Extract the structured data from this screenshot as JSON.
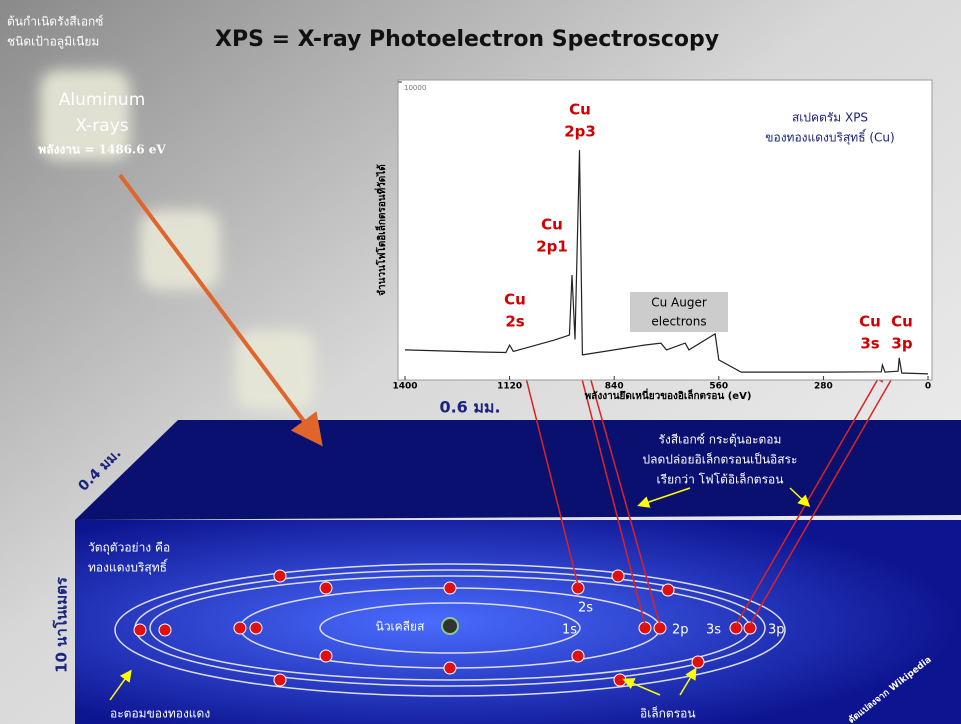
{
  "header": {
    "source_label": [
      "ต้นกำเนิดรังสีเอกซ์",
      "ชนิดเป้าอลูมิเนียม"
    ],
    "title": "XPS = X-ray Photoelectron Spectroscopy"
  },
  "xray": {
    "lines": [
      "Aluminum",
      "X-rays"
    ],
    "energy": "พลังงาน = 1486.6 eV"
  },
  "chart_data": {
    "type": "line",
    "title_lines": [
      "สเปคตรัม XPS",
      "ของทองแดงบริสุทธิ์ (Cu)"
    ],
    "x_label": "พลังงานยึดเหนี่ยวของอิเล็กตรอน (eV)",
    "y_label": "จำนวนโฟโตอิเล็กตรอนที่วัดได้",
    "x": [
      1400,
      1200,
      1130,
      1120,
      1110,
      1000,
      960,
      953,
      945,
      933,
      925,
      840,
      760,
      715,
      700,
      650,
      640,
      570,
      560,
      500,
      280,
      125,
      122,
      115,
      80,
      77,
      70,
      0
    ],
    "values": [
      950,
      880,
      860,
      1110,
      900,
      1280,
      1450,
      3480,
      1300,
      7700,
      780,
      950,
      1110,
      1180,
      950,
      1180,
      950,
      1490,
      610,
      200,
      200,
      210,
      440,
      200,
      230,
      680,
      170,
      140
    ],
    "color": "#222222",
    "xlim": [
      1400,
      0
    ],
    "ylim": [
      0,
      10000
    ],
    "xticks": [
      1400,
      1120,
      840,
      560,
      280,
      0
    ],
    "yticks": [
      10000
    ],
    "peak_labels": [
      [
        "Cu",
        "2s"
      ],
      [
        "Cu",
        "2p1"
      ],
      [
        "Cu",
        "2p3"
      ],
      [
        "Cu",
        "3s"
      ],
      [
        "Cu",
        "3p"
      ]
    ],
    "auger_label": [
      "Cu Auger",
      "electrons"
    ]
  },
  "sample": {
    "width_label": "0.6 มม.",
    "depth_label": "0.4 มม.",
    "thickness_label": "10 นาโนเมตร",
    "description": [
      "วัตถุตัวอย่าง คือ",
      "ทองแดงบริสุทธิ์"
    ],
    "excitation": [
      "รังสีเอกซ์ กระตุ้นอะตอม",
      "ปลดปล่อยอิเล็กตรอนเป็นอิสระ",
      "เรียกว่า โฟโต้อิเล็กตรอน"
    ],
    "nucleus": "นิวเคลียส",
    "shells": [
      "1s",
      "2s",
      "2p",
      "3s",
      "3p"
    ],
    "atom_label": "อะตอมของทองแดง",
    "electron_label": "อิเล็กตรอน",
    "credit": "ดัดแปลงจาก Wikipedia"
  }
}
